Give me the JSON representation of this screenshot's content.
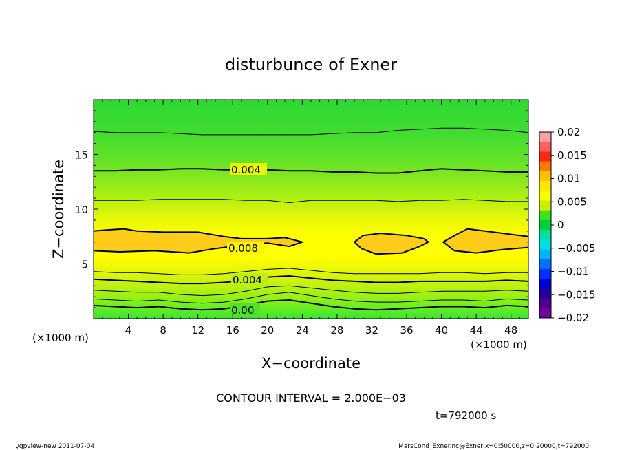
{
  "chart_data": {
    "type": "contour",
    "title": "disturbunce of Exner",
    "xlabel": "X−coordinate",
    "ylabel": "Z−coordinate",
    "x_unit_left": "(×1000 m)",
    "x_unit_right": "(×1000 m)",
    "xlim": [
      0,
      50
    ],
    "ylim": [
      0,
      20
    ],
    "x_ticks": [
      4,
      8,
      12,
      16,
      20,
      24,
      28,
      32,
      36,
      40,
      44,
      48
    ],
    "y_ticks": [
      5,
      10,
      15
    ],
    "colorbar": {
      "levels": [
        -0.02,
        -0.015,
        -0.01,
        -0.005,
        0,
        0.005,
        0.01,
        0.015,
        0.02
      ],
      "labels": [
        "0.02",
        "0.015",
        "0.01",
        "0.005",
        "0",
        "−0.005",
        "−0.01",
        "−0.015",
        "−0.02"
      ],
      "colors": [
        "#ffa0a0",
        "#ff6060",
        "#ff2a10",
        "#ff7a00",
        "#ffc000",
        "#ffe800",
        "#ffff00",
        "#c8f000",
        "#40e020",
        "#00d040",
        "#00e0a0",
        "#00e0e0",
        "#00b0ff",
        "#0070ff",
        "#0030ff",
        "#0000d0",
        "#2000a0",
        "#500090",
        "#7000a0"
      ]
    },
    "contour_labels": [
      "0.004",
      "0.008",
      "0.004",
      "0.00"
    ],
    "annotation": "CONTOUR INTERVAL = 2.000E−03",
    "time_label": "t=792000 s",
    "contour_lines": [
      {
        "z": [
          1.2,
          1.1,
          1.0,
          1.1,
          0.9,
          0.8,
          0.9,
          1.2,
          1.6,
          1.7,
          1.4,
          1.1,
          0.9,
          0.8,
          0.9,
          1.0,
          1.1,
          1.1,
          1.0,
          1.2,
          1.1
        ],
        "bold": true
      },
      {
        "z": [
          1.8,
          1.7,
          1.6,
          1.7,
          1.5,
          1.4,
          1.5,
          1.8,
          2.2,
          2.4,
          2.1,
          1.8,
          1.6,
          1.5,
          1.5,
          1.6,
          1.7,
          1.7,
          1.6,
          1.8,
          1.7
        ],
        "bold": false
      },
      {
        "z": [
          2.6,
          2.5,
          2.4,
          2.4,
          2.2,
          2.1,
          2.2,
          2.5,
          2.9,
          3.0,
          2.8,
          2.6,
          2.4,
          2.3,
          2.3,
          2.4,
          2.5,
          2.5,
          2.5,
          2.6,
          2.5
        ],
        "bold": false
      },
      {
        "z": [
          3.6,
          3.5,
          3.4,
          3.3,
          3.2,
          3.2,
          3.3,
          3.5,
          3.8,
          3.9,
          3.7,
          3.5,
          3.4,
          3.3,
          3.3,
          3.4,
          3.4,
          3.4,
          3.4,
          3.5,
          3.4
        ],
        "bold": true
      },
      {
        "z": [
          4.3,
          4.2,
          4.2,
          4.1,
          4.0,
          4.0,
          4.1,
          4.3,
          4.5,
          4.6,
          4.4,
          4.2,
          4.1,
          4.1,
          4.1,
          4.1,
          4.2,
          4.2,
          4.1,
          4.2,
          4.2
        ],
        "bold": false
      },
      {
        "z": [
          10.8,
          10.8,
          10.8,
          10.9,
          10.9,
          10.9,
          10.9,
          10.8,
          10.8,
          10.6,
          10.8,
          10.8,
          10.8,
          10.8,
          10.7,
          10.8,
          10.8,
          10.9,
          10.8,
          10.7,
          10.7
        ],
        "bold": false
      },
      {
        "z": [
          13.5,
          13.5,
          13.6,
          13.6,
          13.7,
          13.7,
          13.6,
          13.6,
          13.6,
          13.5,
          13.5,
          13.4,
          13.4,
          13.3,
          13.3,
          13.5,
          13.7,
          13.6,
          13.5,
          13.4,
          13.4
        ],
        "bold": true
      },
      {
        "z": [
          17.1,
          17.0,
          17.0,
          17.0,
          16.9,
          16.8,
          16.8,
          16.8,
          16.8,
          16.8,
          16.8,
          16.9,
          17.0,
          17.0,
          17.2,
          17.3,
          17.4,
          17.4,
          17.3,
          17.2,
          17.0
        ],
        "bold": false
      }
    ],
    "contour_loops": [
      {
        "points": [
          [
            0,
            8.0
          ],
          [
            1.5,
            8.1
          ],
          [
            3.5,
            8.2
          ],
          [
            5,
            8.0
          ],
          [
            8,
            7.9
          ],
          [
            12,
            7.9
          ],
          [
            15,
            7.5
          ],
          [
            17,
            7.3
          ],
          [
            20,
            7.3
          ],
          [
            22,
            7.4
          ],
          [
            24,
            7.0
          ],
          [
            22.5,
            6.6
          ],
          [
            20,
            6.9
          ],
          [
            18,
            6.8
          ],
          [
            14,
            6.4
          ],
          [
            11,
            6.0
          ],
          [
            7,
            6.2
          ],
          [
            3,
            6.1
          ],
          [
            0,
            6.2
          ]
        ]
      },
      {
        "points": [
          [
            30,
            7.0
          ],
          [
            31,
            7.6
          ],
          [
            33,
            7.8
          ],
          [
            36,
            7.6
          ],
          [
            38,
            7.3
          ],
          [
            38.5,
            7.0
          ],
          [
            37.5,
            6.6
          ],
          [
            35.5,
            6.0
          ],
          [
            32.5,
            5.9
          ],
          [
            30.8,
            6.4
          ]
        ]
      },
      {
        "points": [
          [
            40.2,
            7.0
          ],
          [
            41.5,
            7.6
          ],
          [
            43,
            8.2
          ],
          [
            46,
            7.9
          ],
          [
            50,
            7.5
          ],
          [
            50,
            6.5
          ],
          [
            47,
            6.3
          ],
          [
            44,
            6.0
          ],
          [
            41.5,
            6.2
          ]
        ]
      }
    ]
  },
  "footer": {
    "left": "./gpview-new   2011-07-04",
    "right": "MarsCond_Exner.nc@Exner,x=0:50000,z=0:20000,t=792000"
  }
}
